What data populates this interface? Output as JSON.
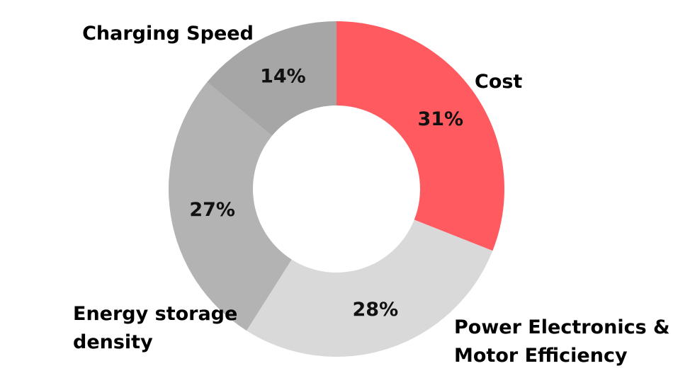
{
  "chart_data": {
    "type": "pie",
    "donut": true,
    "categories": [
      "Cost",
      "Power Electronics & Motor Efficiency",
      "Energy storage density",
      "Charging Speed"
    ],
    "values": [
      31,
      28,
      27,
      14
    ],
    "value_labels": [
      "31%",
      "28%",
      "27%",
      "14%"
    ],
    "category_labels": [
      [
        "Cost"
      ],
      [
        "Power Electronics &",
        "Motor Efficiency"
      ],
      [
        "Energy storage",
        "density"
      ],
      [
        "Charging Speed"
      ]
    ],
    "colors": [
      "#ff5a5f",
      "#d9d9d9",
      "#b3b3b3",
      "#a6a6a6"
    ],
    "start": "12 o'clock",
    "direction": "clockwise",
    "legend": "none"
  }
}
